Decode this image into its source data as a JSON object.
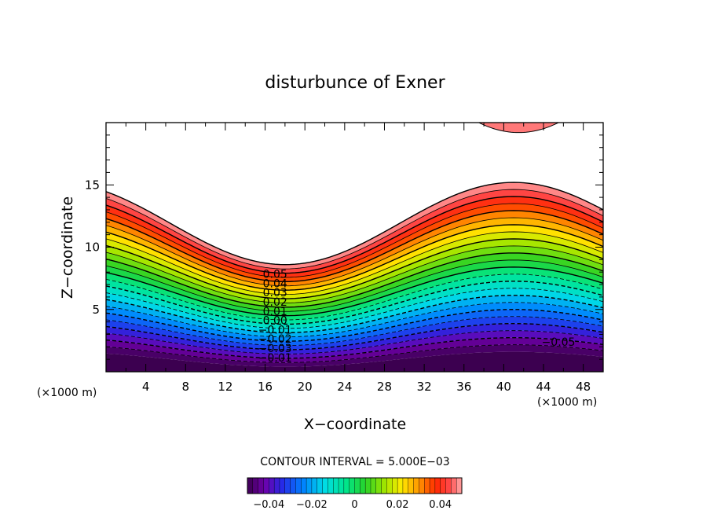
{
  "chart_data": {
    "type": "contour",
    "title": "disturbunce of Exner",
    "xlabel": "X−coordinate",
    "ylabel": "Z−coordinate",
    "x_unit": "(×1000 m)",
    "y_unit": "(×1000 m)",
    "xlim": [
      0,
      50
    ],
    "ylim": [
      0,
      20
    ],
    "x_ticks": [
      "4",
      "8",
      "12",
      "16",
      "20",
      "24",
      "28",
      "32",
      "36",
      "40",
      "44",
      "48"
    ],
    "y_ticks": [
      "5",
      "10",
      "15"
    ],
    "contour_interval": "CONTOUR INTERVAL = 5.000E−03",
    "colorbar_ticks": [
      "−0.04",
      "−0.02",
      "0",
      "0.02",
      "0.04"
    ],
    "colorbar_range": [
      -0.05,
      0.05
    ],
    "contour_levels": [
      -0.05,
      0.05
    ],
    "contour_labels": [
      "0.05",
      "0.04",
      "0.03",
      "0.02",
      "0.01",
      "0.00",
      "−0.01",
      "−0.02",
      "−0.03",
      "−0.01",
      "−0.05"
    ],
    "field_shape": {
      "wave_center_x": 41,
      "wave_valley_x": 18,
      "upper_top_at_valley": 8.6,
      "upper_top_at_crest": 15.2,
      "lower_base_at_valley": 0.4,
      "lower_base_at_crest": 1.6,
      "top_blob_center_x": 41.5,
      "top_blob_bottom": 19.2
    }
  }
}
